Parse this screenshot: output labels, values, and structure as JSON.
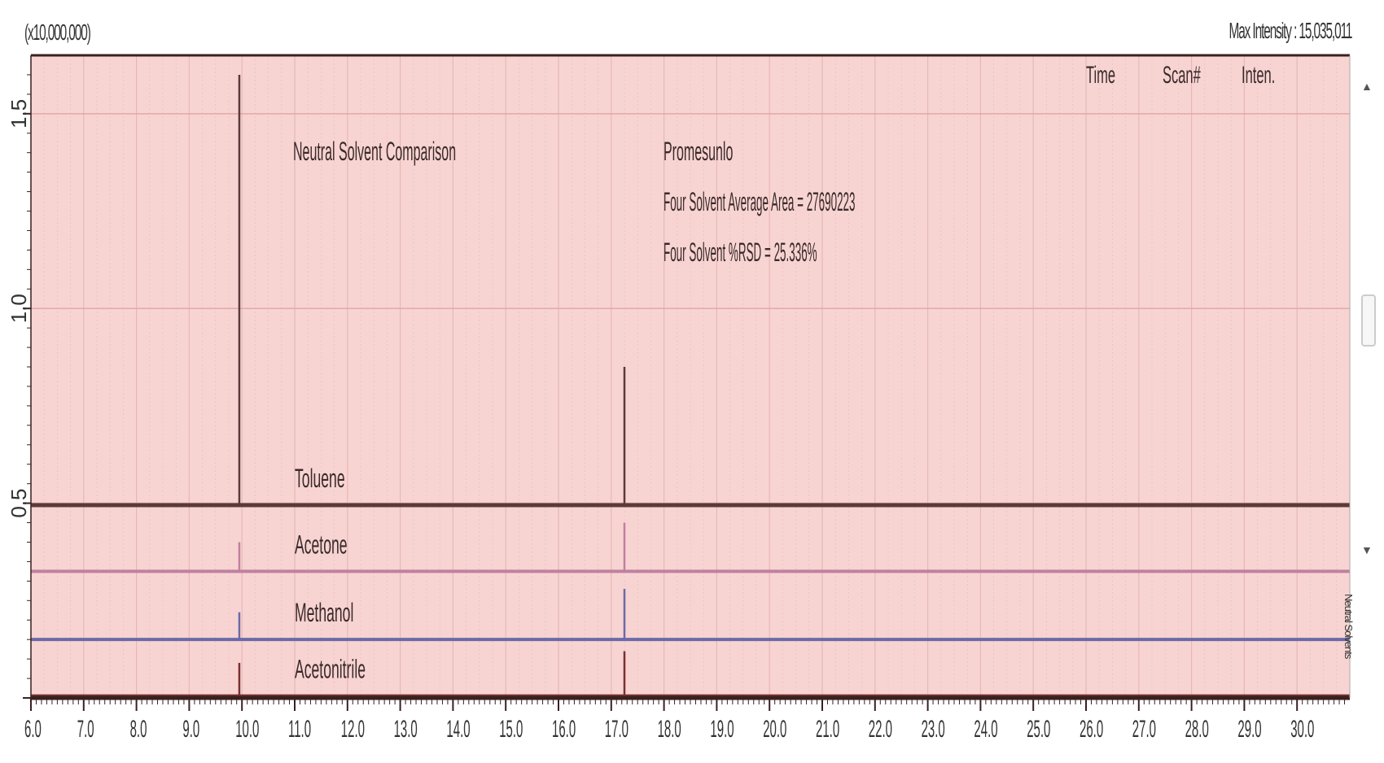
{
  "header": {
    "y_multiplier": "(x10,000,000)",
    "max_intensity": "Max Intensity : 15,035,011"
  },
  "table_header": {
    "col1": "Time",
    "col2": "Scan#",
    "col3": "Inten."
  },
  "annotations": {
    "title": "Neutral Solvent Comparison",
    "method": "Promesunlo",
    "avg_area": "Four Solvent Average Area = 27690223",
    "rsd": "Four Solvent %RSD = 25.336%"
  },
  "side": {
    "up_arrow": "▲",
    "down_arrow": "▼",
    "vertical_text": "Neutral Solvents"
  },
  "chart_data": {
    "type": "line",
    "title": "",
    "xlim": [
      6.0,
      31.0
    ],
    "ylim": [
      0.0,
      1.65
    ],
    "x_ticks": [
      "6.0",
      "7.0",
      "8.0",
      "9.0",
      "10.0",
      "11.0",
      "12.0",
      "13.0",
      "14.0",
      "15.0",
      "16.0",
      "17.0",
      "18.0",
      "19.0",
      "20.0",
      "21.0",
      "22.0",
      "23.0",
      "24.0",
      "25.0",
      "26.0",
      "27.0",
      "28.0",
      "29.0",
      "30.0"
    ],
    "y_ticks": [
      "0.5",
      "1.0",
      "1.5"
    ],
    "grid": true,
    "series": [
      {
        "name": "Toluene",
        "color": "#5a3a3a",
        "baseline": 0.495,
        "peaks": [
          {
            "x": 9.95,
            "y": 1.6
          },
          {
            "x": 17.25,
            "y": 0.85
          }
        ]
      },
      {
        "name": "Acetone",
        "color": "#c080a0",
        "baseline": 0.325,
        "peaks": [
          {
            "x": 9.95,
            "y": 0.4
          },
          {
            "x": 17.25,
            "y": 0.45
          }
        ]
      },
      {
        "name": "Methanol",
        "color": "#6a6aa8",
        "baseline": 0.15,
        "peaks": [
          {
            "x": 9.95,
            "y": 0.22
          },
          {
            "x": 17.25,
            "y": 0.28
          }
        ]
      },
      {
        "name": "Acetonitrile",
        "color": "#7a3030",
        "baseline": 0.005,
        "peaks": [
          {
            "x": 9.95,
            "y": 0.09
          },
          {
            "x": 17.25,
            "y": 0.12
          }
        ]
      }
    ]
  },
  "colors": {
    "plot_bg": "#f7d4d2",
    "axis": "#3a2020",
    "grid": "#e6b8b6"
  }
}
